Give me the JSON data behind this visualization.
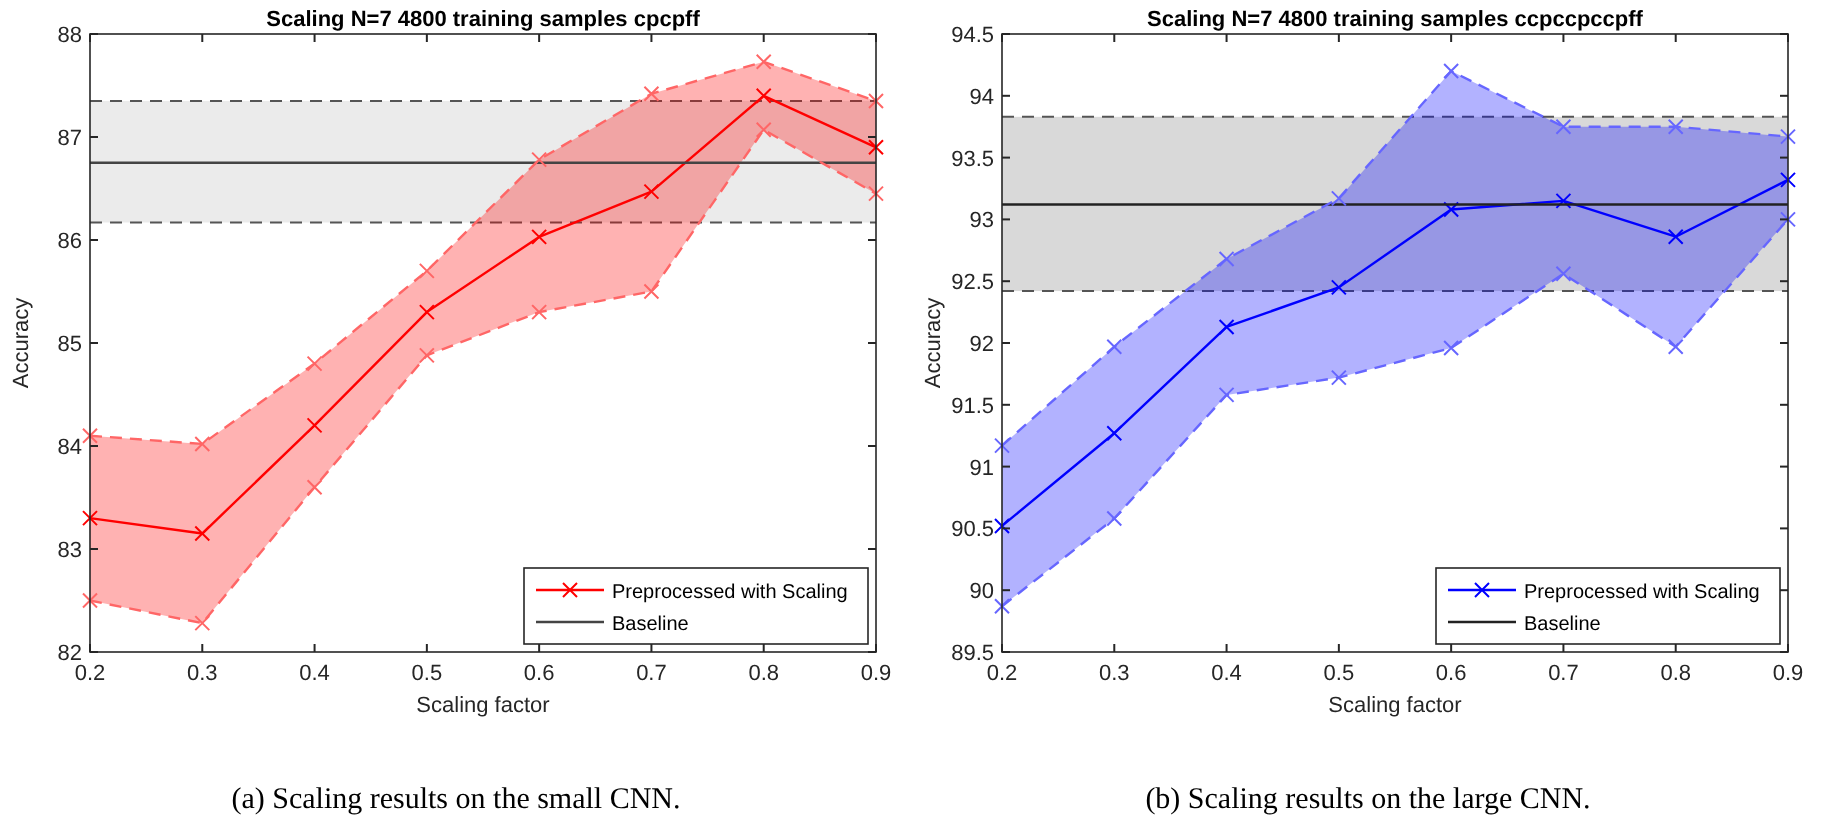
{
  "chart_data": [
    {
      "type": "line",
      "title": "Scaling N=7 4800 training samples cpcpff",
      "xlabel": "Scaling factor",
      "ylabel": "Accuracy",
      "x": [
        0.2,
        0.3,
        0.4,
        0.5,
        0.6,
        0.7,
        0.8,
        0.9
      ],
      "xlim": [
        0.2,
        0.9
      ],
      "xticks": [
        0.2,
        0.3,
        0.4,
        0.5,
        0.6,
        0.7,
        0.8,
        0.9
      ],
      "ylim": [
        82,
        88
      ],
      "yticks": [
        82,
        83,
        84,
        85,
        86,
        87,
        88
      ],
      "series": [
        {
          "name": "Preprocessed with Scaling",
          "color": "#ff0000",
          "marker": "cross",
          "line_style": "solid",
          "values": [
            83.3,
            83.15,
            84.2,
            85.3,
            86.03,
            86.47,
            87.4,
            86.9
          ],
          "lower": [
            82.5,
            82.28,
            83.6,
            84.88,
            85.3,
            85.5,
            87.07,
            86.45
          ],
          "upper": [
            84.1,
            84.02,
            84.8,
            85.7,
            86.78,
            87.42,
            87.73,
            87.35
          ]
        },
        {
          "name": "Baseline",
          "color": "#444444",
          "marker": "none",
          "line_style": "solid",
          "values": [
            86.75,
            86.75,
            86.75,
            86.75,
            86.75,
            86.75,
            86.75,
            86.75
          ]
        },
        {
          "color": "#ff6666",
          "marker": "cross",
          "line_style": "dashed",
          "values": [
            82.5,
            82.28,
            83.6,
            84.88,
            85.3,
            85.5,
            87.07,
            86.45
          ]
        },
        {
          "color": "#ff6666",
          "marker": "cross",
          "line_style": "dashed",
          "values": [
            84.1,
            84.02,
            84.8,
            85.7,
            86.78,
            87.42,
            87.73,
            87.35
          ]
        }
      ],
      "bands": [
        {
          "axis": "y",
          "from": 86.17,
          "to": 87.35,
          "color": "#ebebeb"
        }
      ],
      "ref_lines": [
        {
          "axis": "y",
          "value": 86.17,
          "color": "#555555",
          "line_style": "dashed"
        },
        {
          "axis": "y",
          "value": 87.35,
          "color": "#555555",
          "line_style": "dashed"
        }
      ],
      "legend": "bottom right",
      "annotations": [
        "(a) Scaling results on the small CNN."
      ]
    },
    {
      "type": "line",
      "title": "Scaling N=7 4800 training samples ccpccpccpff",
      "xlabel": "Scaling factor",
      "ylabel": "Accuracy",
      "x": [
        0.2,
        0.3,
        0.4,
        0.5,
        0.6,
        0.7,
        0.8,
        0.9
      ],
      "xlim": [
        0.2,
        0.9
      ],
      "xticks": [
        0.2,
        0.3,
        0.4,
        0.5,
        0.6,
        0.7,
        0.8,
        0.9
      ],
      "ylim": [
        89.5,
        94.5
      ],
      "yticks": [
        89.5,
        90,
        90.5,
        91,
        91.5,
        92,
        92.5,
        93,
        93.5,
        94,
        94.5
      ],
      "series": [
        {
          "name": "Preprocessed with Scaling",
          "color": "#0000ff",
          "marker": "cross",
          "line_style": "solid",
          "values": [
            90.52,
            91.27,
            92.13,
            92.45,
            93.08,
            93.15,
            92.86,
            93.32
          ],
          "lower": [
            89.87,
            90.58,
            91.58,
            91.72,
            91.96,
            92.56,
            91.97,
            93.0
          ],
          "upper": [
            91.17,
            91.97,
            92.68,
            93.17,
            94.2,
            93.75,
            93.75,
            93.67
          ]
        },
        {
          "name": "Baseline",
          "color": "#222222",
          "marker": "none",
          "line_style": "solid",
          "values": [
            93.12,
            93.12,
            93.12,
            93.12,
            93.12,
            93.12,
            93.12,
            93.12
          ]
        },
        {
          "color": "#6666ff",
          "marker": "cross",
          "line_style": "dashed",
          "values": [
            89.87,
            90.58,
            91.58,
            91.72,
            91.96,
            92.56,
            91.97,
            93.0
          ]
        },
        {
          "color": "#6666ff",
          "marker": "cross",
          "line_style": "dashed",
          "values": [
            91.17,
            91.97,
            92.68,
            93.17,
            94.2,
            93.75,
            93.75,
            93.67
          ]
        }
      ],
      "bands": [
        {
          "axis": "y",
          "from": 92.42,
          "to": 93.83,
          "color": "#d9d9d9"
        }
      ],
      "ref_lines": [
        {
          "axis": "y",
          "value": 92.42,
          "color": "#555555",
          "line_style": "dashed"
        },
        {
          "axis": "y",
          "value": 93.83,
          "color": "#555555",
          "line_style": "dashed"
        }
      ],
      "legend": "bottom right",
      "annotations": [
        "(b) Scaling results on the large CNN."
      ]
    }
  ]
}
